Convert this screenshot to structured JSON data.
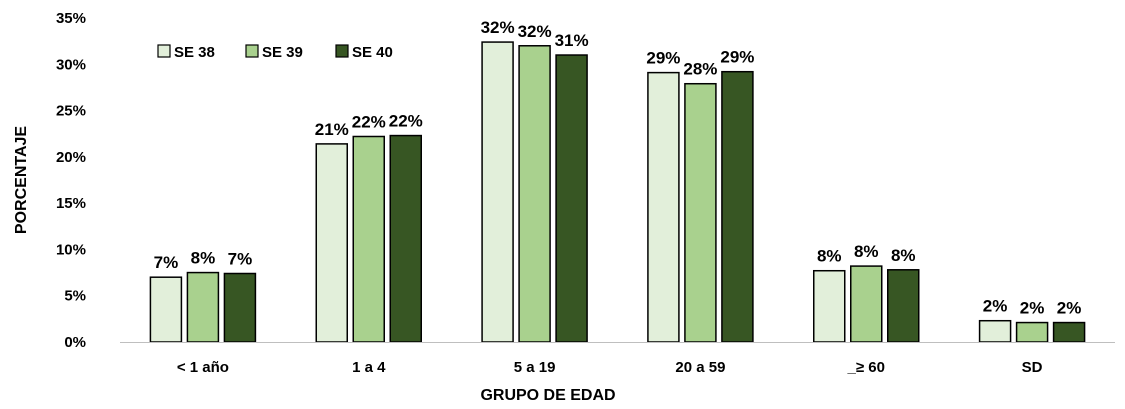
{
  "chart_data": {
    "type": "bar",
    "title": "",
    "xlabel": "GRUPO DE EDAD",
    "ylabel": "PORCENTAJE",
    "categories": [
      "< 1 año",
      "1 a 4",
      "5 a 19",
      "20 a 59",
      "_≥ 60",
      "SD"
    ],
    "series": [
      {
        "name": "SE 38",
        "color": "#e2efda",
        "values": [
          7.0,
          21.4,
          32.4,
          29.1,
          7.7,
          2.3
        ],
        "labels": [
          "7%",
          "21%",
          "32%",
          "29%",
          "8%",
          "2%"
        ]
      },
      {
        "name": "SE 39",
        "color": "#a9d18e",
        "values": [
          7.5,
          22.2,
          32.0,
          27.9,
          8.2,
          2.1
        ],
        "labels": [
          "8%",
          "22%",
          "32%",
          "28%",
          "8%",
          "2%"
        ]
      },
      {
        "name": "SE 40",
        "color": "#375623",
        "values": [
          7.4,
          22.3,
          31.0,
          29.2,
          7.8,
          2.1
        ],
        "labels": [
          "7%",
          "22%",
          "31%",
          "29%",
          "8%",
          "2%"
        ]
      }
    ],
    "ylim": [
      0,
      35
    ],
    "yticks": [
      "0%",
      "5%",
      "10%",
      "15%",
      "20%",
      "25%",
      "30%",
      "35%"
    ],
    "grid": false,
    "legend_position": "top-left"
  }
}
